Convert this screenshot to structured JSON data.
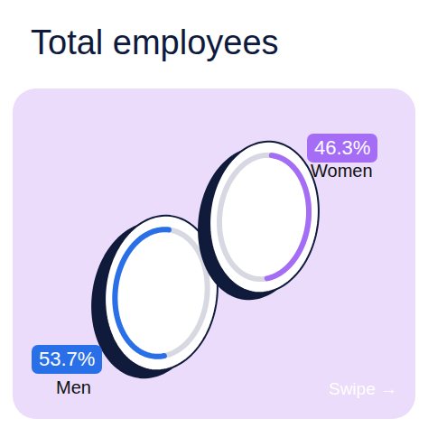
{
  "chart_data": {
    "type": "ring",
    "title": "Total employees",
    "categories": [
      "Women",
      "Men"
    ],
    "values": [
      46.3,
      53.7
    ],
    "value_labels": [
      "46.3%",
      "53.7%"
    ],
    "data_labels": true,
    "colors": [
      "#a56cf6",
      "#2970e8"
    ],
    "annotations": [
      "Swipe →"
    ]
  }
}
